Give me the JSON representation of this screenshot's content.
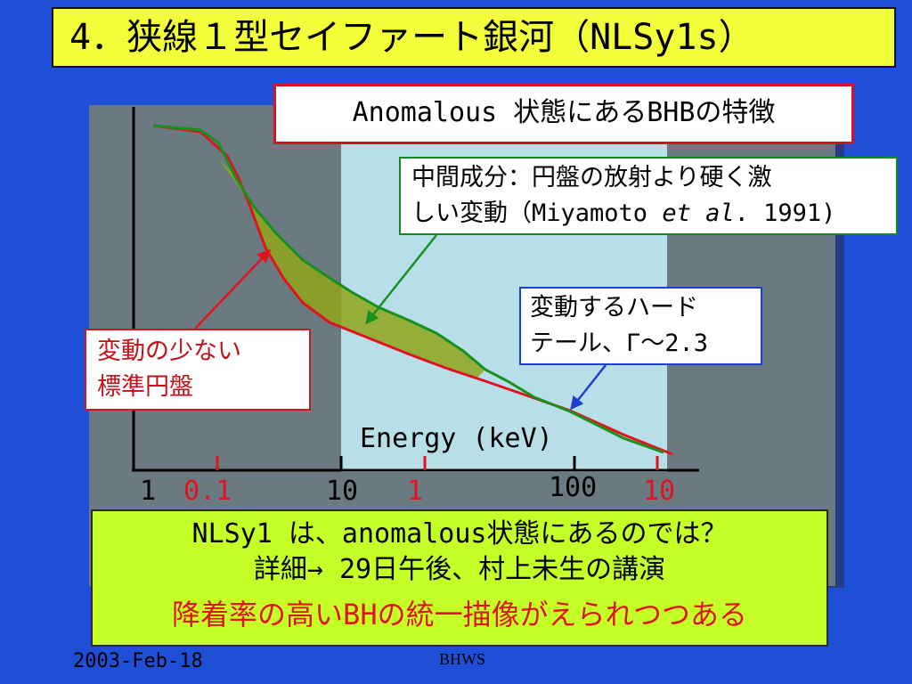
{
  "title": "4．狭線１型セイファート銀河（NLSy1s）",
  "header_box": "Anomalous 状態にあるBHBの特徴",
  "mid_box": {
    "line1": "中間成分：円盤の放射より硬く激",
    "line2_pre": "しい変動（Miyamoto ",
    "line2_em": "et al",
    "line2_post": ". 1991)"
  },
  "hard_box": {
    "line1": "変動するハード",
    "line2": "テール、Γ～2.3"
  },
  "disk_box": {
    "line1": "変動の少ない",
    "line2": "標準円盤"
  },
  "axis": {
    "xlabel": "Energy (keV)",
    "ticks_black": [
      "1",
      "10",
      "100"
    ],
    "ticks_red": [
      "0.1",
      "1",
      "10"
    ]
  },
  "colors": {
    "red_curve": "#e0141e",
    "green_curve": "#18901e",
    "fill": "#8ea61a",
    "band": "#b8dfe8"
  },
  "bottom_box": {
    "line1": "NLSy1 は、anomalous状態にあるのでは？",
    "line2": "詳細→ 29日午後、村上未生の講演",
    "line3": "降着率の高いBHの統一描像がえられつつある"
  },
  "footer": {
    "date": "2003-Feb-18",
    "conference": "BHWS"
  }
}
